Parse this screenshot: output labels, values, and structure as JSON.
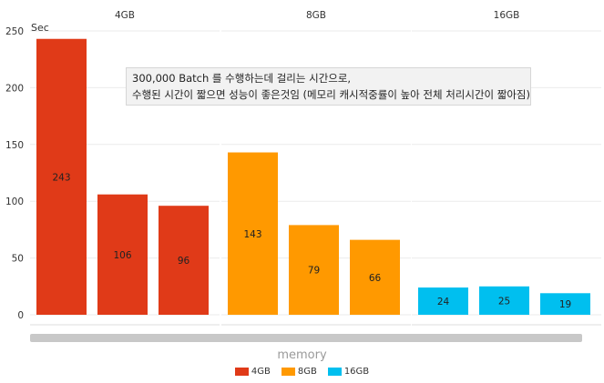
{
  "chart_data": {
    "type": "bar",
    "y_unit_label": "Sec",
    "ylim": [
      0,
      250
    ],
    "yticks": [
      0,
      50,
      100,
      150,
      200,
      250
    ],
    "x_axis_title": "memory",
    "grid": true,
    "legend_position": "bottom-center",
    "panels": [
      {
        "title": "4GB",
        "color": "#e03a18",
        "values": [
          243,
          106,
          96
        ]
      },
      {
        "title": "8GB",
        "color": "#ff9900",
        "values": [
          143,
          79,
          66
        ]
      },
      {
        "title": "16GB",
        "color": "#00bfef",
        "values": [
          24,
          25,
          19
        ]
      }
    ],
    "legend": [
      {
        "label": "4GB",
        "color": "#e03a18"
      },
      {
        "label": "8GB",
        "color": "#ff9900"
      },
      {
        "label": "16GB",
        "color": "#00bfef"
      }
    ],
    "annotation": {
      "line1": "300,000 Batch 를 수행하는데 걸리는 시간으로,",
      "line2": "수행된 시간이 짧으면 성능이 좋은것임 (메모리 캐시적중률이 높아 전체 처리시간이 짧아짐)"
    }
  }
}
